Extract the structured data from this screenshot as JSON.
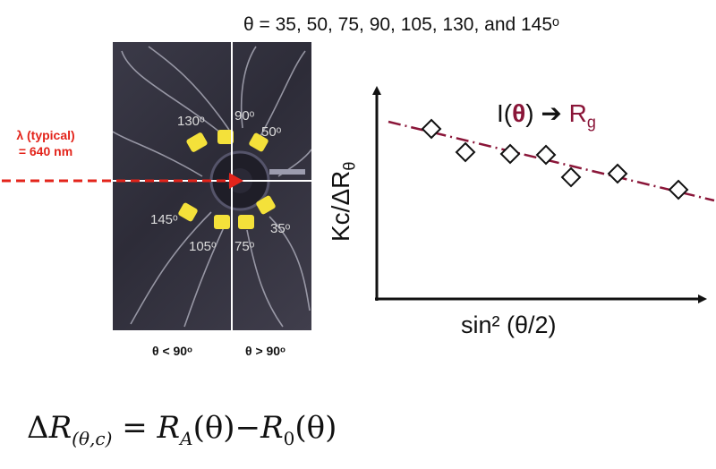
{
  "top_caption": "θ = 35, 50, 75, 90, 105, 130, and 145ᵒ",
  "photo": {
    "wavelength_line1": "λ (typical)",
    "wavelength_line2": "= 640 nm",
    "detector_labels": [
      "130ᵒ",
      "90ᵒ",
      "50ᵒ",
      "145ᵒ",
      "105ᵒ",
      "75ᵒ",
      "35ᵒ"
    ],
    "below_left": "θ < 90ᵒ",
    "below_right": "θ > 90ᵒ"
  },
  "plot": {
    "ylabel": "Kc/ΔR",
    "ylabel_sub": "θ",
    "xlabel": "sin² (θ/2)",
    "annotation_left": "I(",
    "annotation_theta": "θ",
    "annotation_right": ")",
    "annotation_arrow": "➔",
    "annotation_target": "R",
    "annotation_target_sub": "g",
    "fit_color": "#8a1538",
    "marker": "open-diamond"
  },
  "equation": {
    "delta": "Δ",
    "r": "R",
    "r_sub": "(θ,c)",
    "equals": " = ",
    "ra": "R",
    "ra_sub": "A",
    "ra_arg": "(θ)",
    "minus": "−",
    "r0": "R",
    "r0_sub": "0",
    "r0_arg": "(θ)"
  },
  "colors": {
    "laser": "#e3241b",
    "detector_cap": "#f4e13a",
    "fiber": "#b8b8c6"
  }
}
